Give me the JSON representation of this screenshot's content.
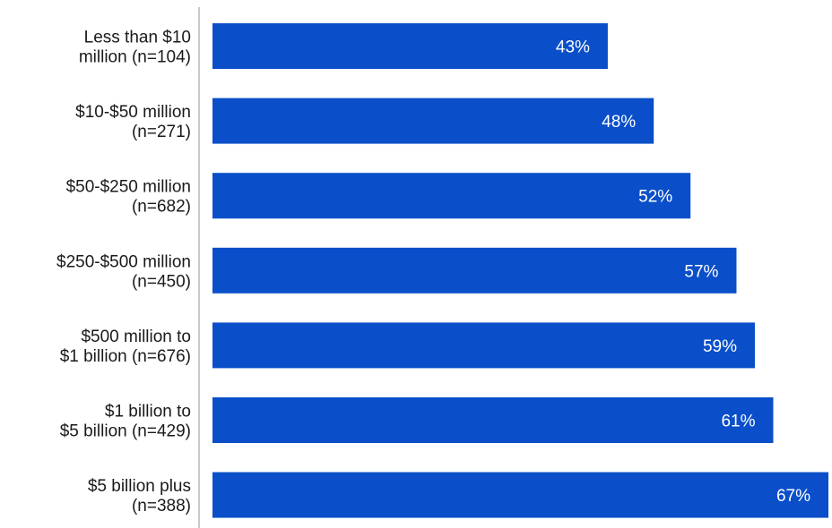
{
  "chart_data": {
    "type": "bar",
    "orientation": "horizontal",
    "categories": [
      [
        "Less than $10",
        "million (n=104)"
      ],
      [
        "$10-$50 million",
        "(n=271)"
      ],
      [
        "$50-$250 million",
        "(n=682)"
      ],
      [
        "$250-$500 million",
        "(n=450)"
      ],
      [
        "$500 million to",
        "$1 billion (n=676)"
      ],
      [
        "$1 billion to",
        "$5 billion (n=429)"
      ],
      [
        "$5 billion plus",
        "(n=388)"
      ]
    ],
    "values": [
      43,
      48,
      52,
      57,
      59,
      61,
      67
    ],
    "value_labels": [
      "43%",
      "48%",
      "52%",
      "57%",
      "59%",
      "61%",
      "67%"
    ],
    "title": "",
    "xlabel": "",
    "ylabel": "",
    "xlim": [
      0,
      67
    ],
    "grid": false,
    "legend": "none",
    "colors": {
      "bar": "#0a4fc9",
      "value_text": "#ffffff",
      "category_text": "#1a1a1a",
      "axis": "#c8c8c8"
    }
  }
}
